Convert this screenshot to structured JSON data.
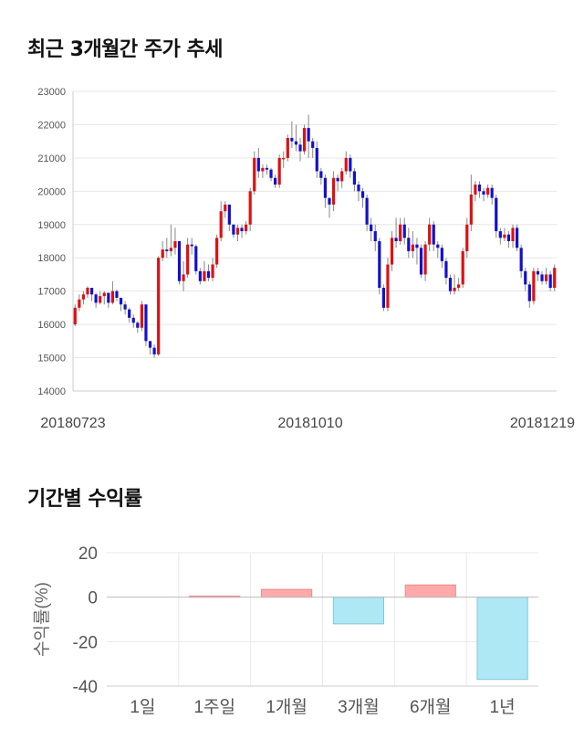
{
  "sections": {
    "price_title": "최근 3개월간 주가 추세",
    "returns_title": "기간별 수익률"
  },
  "chart_data": [
    {
      "type": "candlestick",
      "title": "최근 3개월간 주가 추세",
      "ylim": [
        14000,
        23000
      ],
      "yticks": [
        14000,
        15000,
        16000,
        17000,
        18000,
        19000,
        20000,
        21000,
        22000,
        23000
      ],
      "xticks": [
        "20180723",
        "20181010",
        "20181219"
      ],
      "grid": true,
      "colors": {
        "up": "#dd1111",
        "down": "#1111cc",
        "wick": "#888888"
      },
      "candles": [
        [
          16000,
          16500,
          16600,
          15950
        ],
        [
          16500,
          16750,
          16900,
          16400
        ],
        [
          16750,
          16900,
          17000,
          16600
        ],
        [
          16900,
          17100,
          17150,
          16800
        ],
        [
          17100,
          16900,
          17100,
          16700
        ],
        [
          16900,
          16650,
          16950,
          16500
        ],
        [
          16650,
          16850,
          17000,
          16600
        ],
        [
          16850,
          16950,
          17000,
          16600
        ],
        [
          16950,
          16650,
          16950,
          16500
        ],
        [
          16650,
          17000,
          17300,
          16600
        ],
        [
          17000,
          16800,
          17050,
          16700
        ],
        [
          16800,
          16600,
          16800,
          16400
        ],
        [
          16600,
          16450,
          16700,
          16300
        ],
        [
          16450,
          16200,
          16500,
          16050
        ],
        [
          16200,
          16050,
          16300,
          15900
        ],
        [
          16050,
          15900,
          16100,
          15750
        ],
        [
          15900,
          16600,
          16700,
          15800
        ],
        [
          16600,
          15500,
          16600,
          15350
        ],
        [
          15500,
          15300,
          15500,
          15100
        ],
        [
          15300,
          15100,
          15400,
          15000
        ],
        [
          15100,
          18000,
          18050,
          15050
        ],
        [
          18000,
          18250,
          18500,
          17900
        ],
        [
          18250,
          18200,
          18600,
          18000
        ],
        [
          18200,
          18300,
          19000,
          18050
        ],
        [
          18300,
          18500,
          18900,
          18100
        ],
        [
          18500,
          17300,
          18500,
          17200
        ],
        [
          17300,
          17500,
          17900,
          17000
        ],
        [
          17500,
          18400,
          18600,
          17400
        ],
        [
          18400,
          18350,
          18600,
          18100
        ],
        [
          18350,
          17600,
          18400,
          17500
        ],
        [
          17600,
          17300,
          17700,
          17200
        ],
        [
          17300,
          17600,
          17900,
          17300
        ],
        [
          17600,
          17400,
          17800,
          17300
        ],
        [
          17400,
          17800,
          18000,
          17300
        ],
        [
          17800,
          18600,
          18700,
          17700
        ],
        [
          18600,
          19400,
          19700,
          18500
        ],
        [
          19400,
          19600,
          19700,
          19200
        ],
        [
          19600,
          19000,
          19600,
          18800
        ],
        [
          19000,
          18700,
          19000,
          18600
        ],
        [
          18700,
          18900,
          19000,
          18500
        ],
        [
          18900,
          18800,
          19000,
          18600
        ],
        [
          18800,
          19000,
          19100,
          18700
        ],
        [
          19000,
          20000,
          20100,
          18800
        ],
        [
          20000,
          21000,
          21200,
          19900
        ],
        [
          21000,
          20600,
          21300,
          20400
        ],
        [
          20600,
          20700,
          20800,
          20400
        ],
        [
          20700,
          20650,
          20800,
          20500
        ],
        [
          20650,
          20400,
          20700,
          20300
        ],
        [
          20400,
          20200,
          20500,
          20100
        ],
        [
          20200,
          21000,
          21100,
          20100
        ],
        [
          21000,
          21000,
          21200,
          20700
        ],
        [
          21000,
          21600,
          21700,
          20900
        ],
        [
          21600,
          21500,
          22100,
          21300
        ],
        [
          21500,
          21400,
          22000,
          21200
        ],
        [
          21400,
          21200,
          21600,
          20900
        ],
        [
          21200,
          21900,
          22000,
          21100
        ],
        [
          21900,
          21500,
          22300,
          21000
        ],
        [
          21500,
          21300,
          21600,
          21000
        ],
        [
          21300,
          20600,
          21500,
          20400
        ],
        [
          20600,
          20400,
          20700,
          20200
        ],
        [
          20400,
          19800,
          20500,
          19500
        ],
        [
          19800,
          19600,
          19800,
          19200
        ],
        [
          19600,
          20400,
          20600,
          19400
        ],
        [
          20400,
          20300,
          20500,
          20000
        ],
        [
          20300,
          20600,
          20700,
          20100
        ],
        [
          20600,
          21000,
          21200,
          20500
        ],
        [
          21000,
          20600,
          21100,
          20400
        ],
        [
          20600,
          20200,
          20700,
          20000
        ],
        [
          20200,
          20000,
          20300,
          19700
        ],
        [
          20000,
          19800,
          20100,
          19500
        ],
        [
          19800,
          19000,
          19900,
          18800
        ],
        [
          19000,
          18800,
          19200,
          18500
        ],
        [
          18800,
          18500,
          19000,
          18200
        ],
        [
          18500,
          17100,
          18600,
          16900
        ],
        [
          17100,
          16500,
          17200,
          16400
        ],
        [
          16500,
          17800,
          18000,
          16400
        ],
        [
          17800,
          18600,
          18800,
          17600
        ],
        [
          18600,
          18500,
          19200,
          18300
        ],
        [
          18500,
          19000,
          19200,
          18400
        ],
        [
          19000,
          18600,
          19200,
          18400
        ],
        [
          18600,
          18200,
          18900,
          18000
        ],
        [
          18200,
          18400,
          18800,
          18000
        ],
        [
          18400,
          18300,
          18600,
          17800
        ],
        [
          18300,
          17500,
          18400,
          17400
        ],
        [
          17500,
          18400,
          18500,
          17300
        ],
        [
          18400,
          19000,
          19200,
          18200
        ],
        [
          19000,
          18400,
          19100,
          18200
        ],
        [
          18400,
          18300,
          18500,
          18000
        ],
        [
          18300,
          17900,
          18400,
          17700
        ],
        [
          17900,
          17400,
          18000,
          17200
        ],
        [
          17400,
          17000,
          17500,
          16900
        ],
        [
          17000,
          17100,
          17500,
          16900
        ],
        [
          17100,
          17200,
          17400,
          17000
        ],
        [
          17200,
          18200,
          18300,
          17100
        ],
        [
          18200,
          19000,
          19200,
          18000
        ],
        [
          19000,
          19900,
          20500,
          18800
        ],
        [
          19900,
          20200,
          20300,
          19700
        ],
        [
          20200,
          20000,
          20300,
          19800
        ],
        [
          20000,
          19900,
          20100,
          19700
        ],
        [
          19900,
          20100,
          20200,
          19800
        ],
        [
          20100,
          19800,
          20200,
          19600
        ],
        [
          19800,
          18800,
          19900,
          18600
        ],
        [
          18800,
          18600,
          18900,
          18400
        ],
        [
          18600,
          18700,
          18900,
          18500
        ],
        [
          18700,
          18500,
          18800,
          18300
        ],
        [
          18500,
          18900,
          19000,
          18300
        ],
        [
          18900,
          18300,
          19000,
          18200
        ],
        [
          18300,
          17600,
          18400,
          17400
        ],
        [
          17600,
          17200,
          17700,
          17000
        ],
        [
          17200,
          16700,
          17300,
          16500
        ],
        [
          16700,
          17600,
          17700,
          16600
        ],
        [
          17600,
          17500,
          17700,
          17300
        ],
        [
          17500,
          17300,
          17600,
          17200
        ],
        [
          17300,
          17500,
          17700,
          17200
        ],
        [
          17500,
          17100,
          17600,
          17000
        ],
        [
          17100,
          17700,
          17800,
          17000
        ]
      ]
    },
    {
      "type": "bar",
      "title": "기간별 수익률",
      "ylabel": "수익률(%)",
      "ylim": [
        -40,
        20
      ],
      "yticks": [
        20,
        0,
        -20,
        -40
      ],
      "categories": [
        "1일",
        "1주일",
        "1개월",
        "3개월",
        "6개월",
        "1년"
      ],
      "values": [
        0.0,
        0.5,
        3.5,
        -12.0,
        5.5,
        -37.0
      ],
      "colors": {
        "positive_fill": "#ffaaaa",
        "positive_stroke": "#f08888",
        "negative_fill": "#aee8f5",
        "negative_stroke": "#7ec8d8"
      },
      "grid": true
    }
  ]
}
